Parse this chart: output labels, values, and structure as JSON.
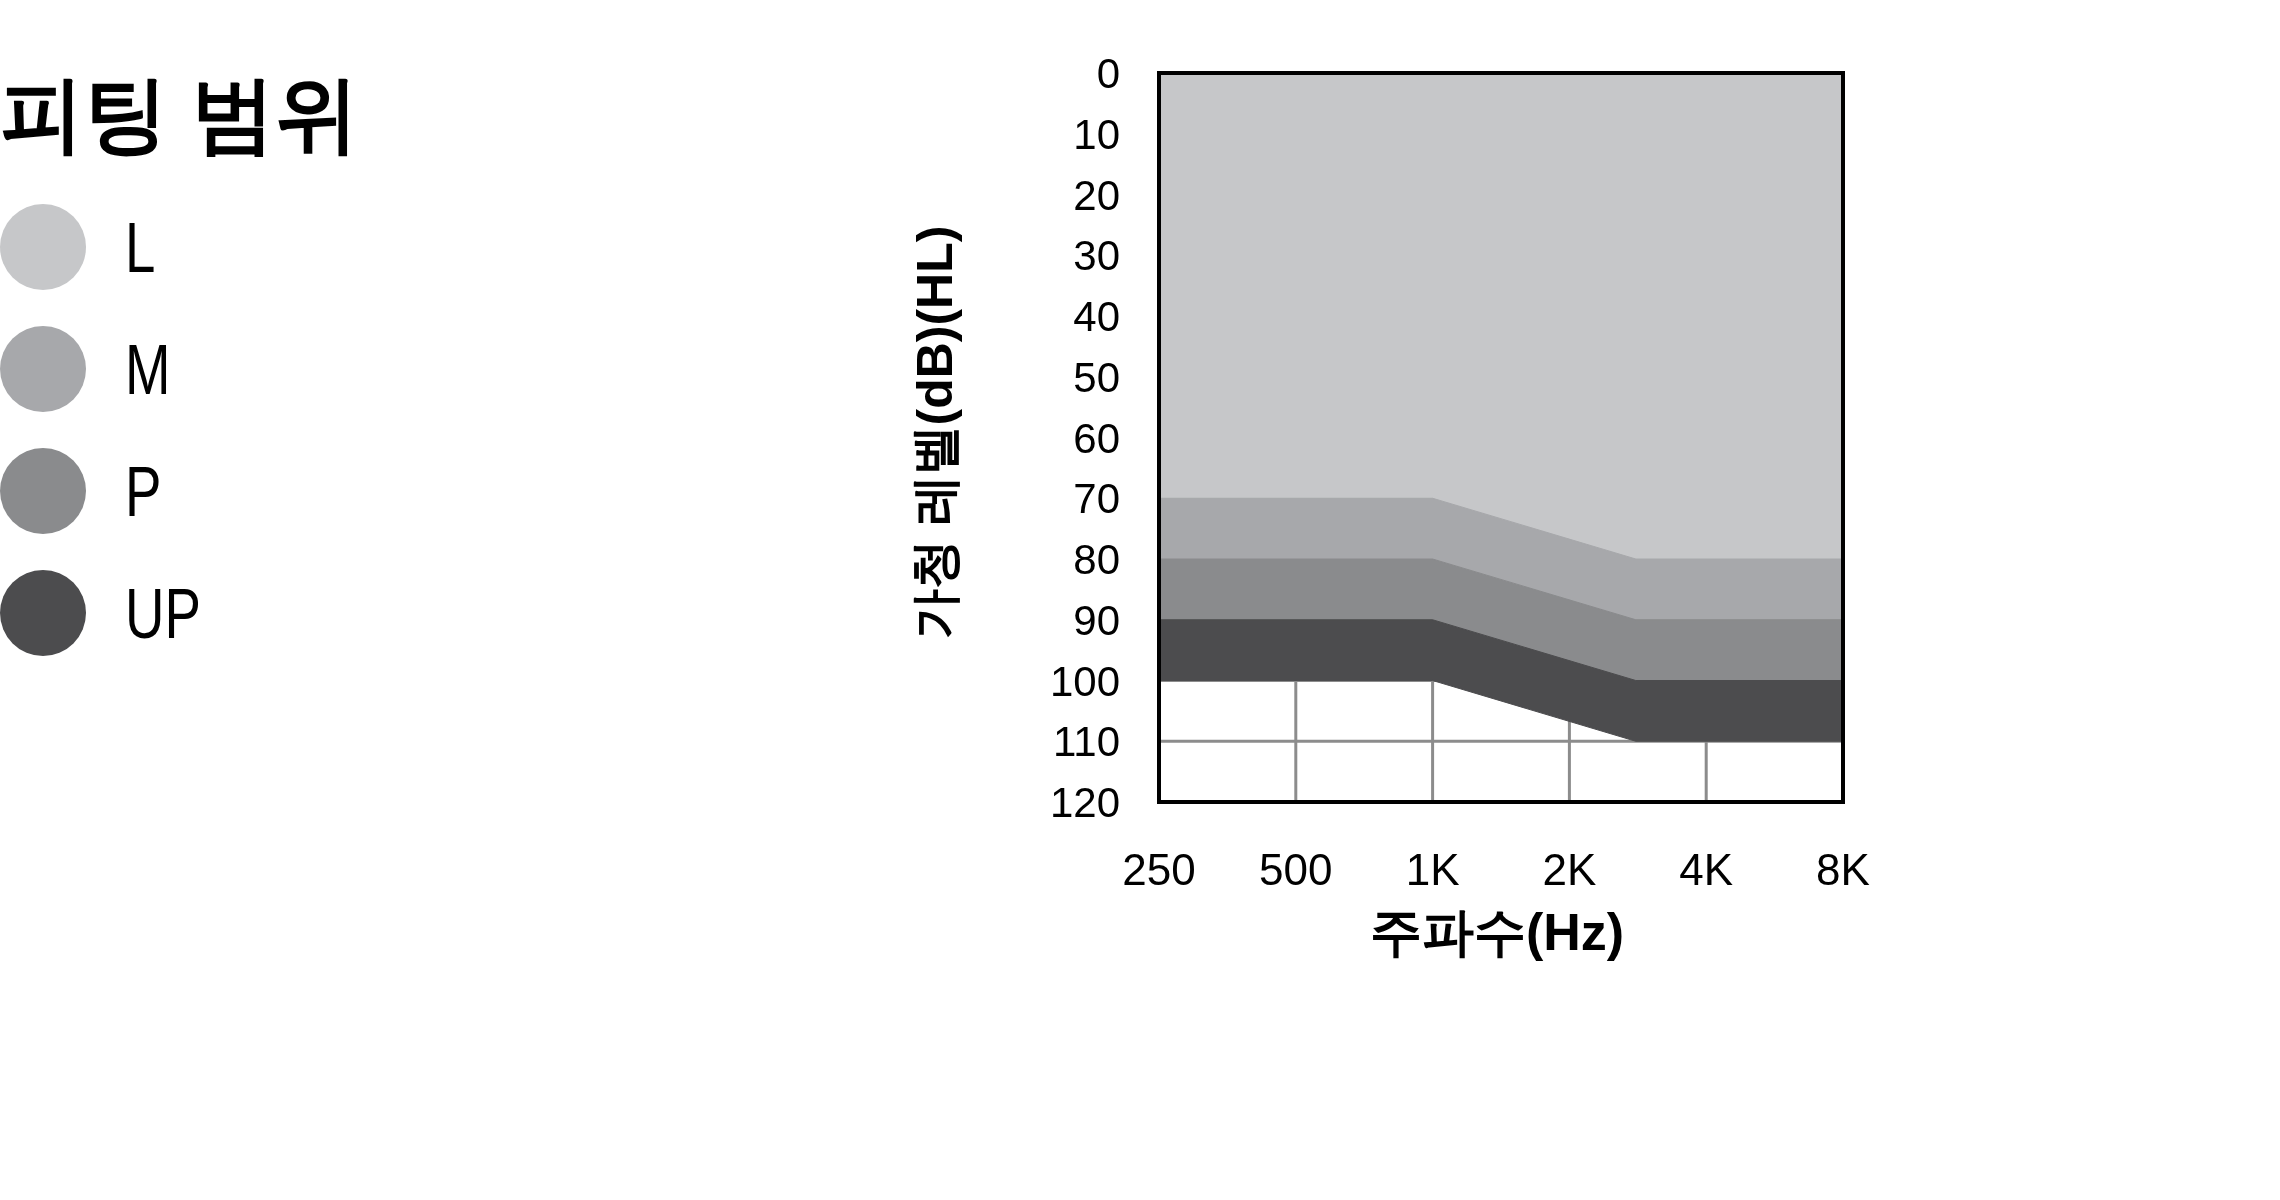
{
  "chart_data": {
    "type": "area",
    "stacked": true,
    "xlabel": "주파수(Hz)",
    "ylabel": "가청 레벨(dB)(HL)",
    "legend_title": "피팅 범위",
    "legend": "left",
    "log": "x",
    "grid": true,
    "x": [
      250,
      1000,
      2800,
      8000
    ],
    "series": [
      {
        "name": "L",
        "color": "#c6c7c9",
        "values": [
          70,
          70,
          80,
          80
        ]
      },
      {
        "name": "M",
        "color": "#a7a8ab",
        "values": [
          10,
          10,
          10,
          10
        ]
      },
      {
        "name": "P",
        "color": "#8a8b8d",
        "values": [
          10,
          10,
          10,
          10
        ]
      },
      {
        "name": "UP",
        "color": "#4c4c4e",
        "values": [
          10,
          10,
          10,
          10
        ]
      }
    ],
    "xlim": [
      250,
      8000
    ],
    "xticks": [
      250,
      500,
      {
        "value": 1000,
        "label": "1K"
      },
      {
        "value": 2000,
        "label": "2K"
      },
      {
        "value": 4000,
        "label": "4K"
      },
      {
        "value": 8000,
        "label": "8K"
      }
    ],
    "ylim": [
      120,
      0
    ],
    "yticks": [
      0,
      10,
      20,
      30,
      40,
      50,
      60,
      70,
      80,
      90,
      100,
      110,
      120
    ]
  }
}
